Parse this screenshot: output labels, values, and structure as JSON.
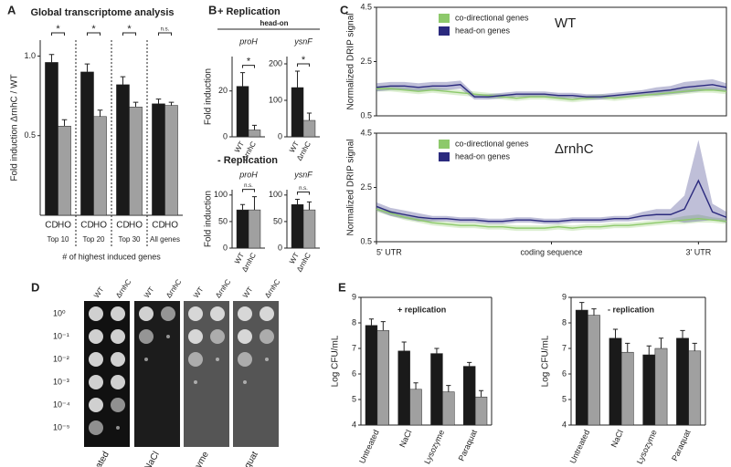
{
  "panels": [
    "A",
    "B",
    "C",
    "D",
    "E"
  ],
  "panel_b": {
    "plus": "+ Replication",
    "head_on": "head-on",
    "minus": "- Replication"
  },
  "panel_d": {
    "strains": [
      "WT",
      "ΔrnhC"
    ],
    "dilutions": [
      "10⁰",
      "10⁻¹",
      "10⁻²",
      "10⁻³",
      "10⁻⁴",
      "10⁻⁵"
    ],
    "conditions": [
      "Untreated",
      "NaCl",
      "Lysozyme",
      "Paraquat"
    ]
  },
  "chart_data": [
    {
      "type": "bar",
      "title": "Global transcriptome analysis",
      "y_label": "Fold induction ΔrnhC / WT",
      "x_label": "# of highest induced genes",
      "categories": [
        "Top 10",
        "Top 20",
        "Top 30",
        "All genes"
      ],
      "series": [
        {
          "name": "CD",
          "color": "#1a1a1a",
          "values": [
            0.96,
            0.9,
            0.82,
            0.7
          ],
          "errors": [
            0.05,
            0.05,
            0.05,
            0.03
          ]
        },
        {
          "name": "HO",
          "color": "#a0a0a0",
          "values": [
            0.56,
            0.62,
            0.68,
            0.69
          ],
          "errors": [
            0.04,
            0.04,
            0.03,
            0.02
          ]
        }
      ],
      "significance": [
        "*",
        "*",
        "*",
        "n.s."
      ],
      "ylim": [
        0,
        1.1
      ],
      "yticks": [
        0.5,
        {
          "value": 1,
          "label": "1.0"
        }
      ]
    },
    {
      "type": "bar",
      "title": "proH",
      "y_label": "Fold induction",
      "series": [
        {
          "name": "WT",
          "color": "#1a1a1a",
          "values": [
            22
          ],
          "errors": [
            6
          ]
        },
        {
          "name": "ΔrnhC",
          "color": "#a0a0a0",
          "values": [
            3
          ],
          "errors": [
            2
          ]
        }
      ],
      "significance": "*",
      "ylim": [
        0,
        35
      ],
      "yticks": [
        0,
        20
      ]
    },
    {
      "type": "bar",
      "title": "ysnF",
      "series": [
        {
          "name": "WT",
          "color": "#1a1a1a",
          "values": [
            135
          ],
          "errors": [
            45
          ]
        },
        {
          "name": "ΔrnhC",
          "color": "#a0a0a0",
          "values": [
            45
          ],
          "errors": [
            20
          ]
        }
      ],
      "significance": "*",
      "ylim": [
        0,
        220
      ],
      "yticks": [
        0,
        100,
        200
      ]
    },
    {
      "type": "bar",
      "title": "proH",
      "y_label": "Fold induction",
      "series": [
        {
          "name": "WT",
          "color": "#1a1a1a",
          "values": [
            72
          ],
          "errors": [
            10
          ]
        },
        {
          "name": "ΔrnhC",
          "color": "#a0a0a0",
          "values": [
            72
          ],
          "errors": [
            25
          ]
        }
      ],
      "significance": "n.s.",
      "ylim": [
        0,
        110
      ],
      "yticks": [
        0,
        50,
        100
      ]
    },
    {
      "type": "bar",
      "title": "ysnF",
      "series": [
        {
          "name": "WT",
          "color": "#1a1a1a",
          "values": [
            82
          ],
          "errors": [
            10
          ]
        },
        {
          "name": "ΔrnhC",
          "color": "#a0a0a0",
          "values": [
            72
          ],
          "errors": [
            15
          ]
        }
      ],
      "significance": "n.s.",
      "ylim": [
        0,
        110
      ],
      "yticks": [
        0,
        50,
        100
      ]
    },
    {
      "type": "line",
      "title": "WT",
      "y_label": "Normalized DRIP signal",
      "x": [
        0,
        4,
        8,
        12,
        16,
        20,
        24,
        28,
        32,
        36,
        40,
        44,
        48,
        52,
        56,
        60,
        64,
        68,
        72,
        76,
        80,
        84,
        88,
        92,
        96,
        100
      ],
      "series": [
        {
          "name": "co-directional genes",
          "color": "#8dc96b",
          "values": [
            1.5,
            1.5,
            1.45,
            1.4,
            1.45,
            1.4,
            1.35,
            1.3,
            1.25,
            1.2,
            1.15,
            1.2,
            1.2,
            1.15,
            1.1,
            1.15,
            1.2,
            1.15,
            1.2,
            1.25,
            1.3,
            1.35,
            1.4,
            1.45,
            1.45,
            1.4
          ],
          "errors": [
            0.1,
            0.1,
            0.1,
            0.1,
            0.1,
            0.1,
            0.1,
            0.1,
            0.1,
            0.1,
            0.1,
            0.1,
            0.1,
            0.1,
            0.1,
            0.1,
            0.1,
            0.1,
            0.1,
            0.1,
            0.1,
            0.1,
            0.1,
            0.1,
            0.1,
            0.1
          ]
        },
        {
          "name": "head-on genes",
          "color": "#2b2a7e",
          "values": [
            1.55,
            1.6,
            1.6,
            1.55,
            1.6,
            1.6,
            1.65,
            1.2,
            1.2,
            1.25,
            1.3,
            1.3,
            1.3,
            1.25,
            1.25,
            1.2,
            1.2,
            1.25,
            1.3,
            1.35,
            1.4,
            1.45,
            1.55,
            1.6,
            1.65,
            1.55
          ],
          "errors": [
            0.15,
            0.15,
            0.15,
            0.15,
            0.15,
            0.15,
            0.15,
            0.1,
            0.1,
            0.1,
            0.1,
            0.1,
            0.1,
            0.1,
            0.1,
            0.1,
            0.1,
            0.1,
            0.1,
            0.1,
            0.15,
            0.15,
            0.2,
            0.2,
            0.2,
            0.15
          ]
        }
      ],
      "xlim": [
        0,
        100
      ],
      "ylim": [
        0.5,
        4.5
      ],
      "yticks": [
        0.5,
        2.5,
        4.5
      ]
    },
    {
      "type": "line",
      "title": "ΔrnhC",
      "y_label": "Normalized DRIP signal",
      "x": [
        0,
        4,
        8,
        12,
        16,
        20,
        24,
        28,
        32,
        36,
        40,
        44,
        48,
        52,
        56,
        60,
        64,
        68,
        72,
        76,
        80,
        84,
        88,
        92,
        96,
        100
      ],
      "series": [
        {
          "name": "co-directional genes",
          "color": "#8dc96b",
          "values": [
            1.7,
            1.55,
            1.4,
            1.3,
            1.2,
            1.15,
            1.1,
            1.1,
            1.05,
            1.05,
            1.0,
            1.0,
            1.0,
            1.05,
            1.0,
            1.05,
            1.05,
            1.1,
            1.1,
            1.15,
            1.2,
            1.25,
            1.3,
            1.35,
            1.3,
            1.25
          ],
          "errors": [
            0.1,
            0.1,
            0.1,
            0.1,
            0.1,
            0.1,
            0.1,
            0.1,
            0.1,
            0.1,
            0.1,
            0.1,
            0.1,
            0.1,
            0.1,
            0.1,
            0.1,
            0.1,
            0.1,
            0.1,
            0.1,
            0.1,
            0.15,
            0.15,
            0.1,
            0.1
          ]
        },
        {
          "name": "head-on genes",
          "color": "#2b2a7e",
          "values": [
            1.8,
            1.6,
            1.5,
            1.4,
            1.35,
            1.35,
            1.3,
            1.3,
            1.25,
            1.25,
            1.3,
            1.3,
            1.25,
            1.25,
            1.3,
            1.3,
            1.3,
            1.35,
            1.35,
            1.45,
            1.5,
            1.5,
            1.7,
            2.75,
            1.6,
            1.4
          ],
          "errors": [
            0.15,
            0.15,
            0.15,
            0.15,
            0.1,
            0.1,
            0.1,
            0.1,
            0.1,
            0.1,
            0.1,
            0.1,
            0.1,
            0.1,
            0.1,
            0.1,
            0.1,
            0.1,
            0.1,
            0.15,
            0.2,
            0.2,
            0.5,
            1.5,
            0.3,
            0.2
          ]
        }
      ],
      "xlim": [
        0,
        100
      ],
      "ylim": [
        0.5,
        4.5
      ],
      "yticks": [
        0.5,
        2.5,
        4.5
      ],
      "xticks": [
        {
          "value": 0,
          "label": "5' UTR"
        },
        {
          "value": 50,
          "label": "coding sequence"
        },
        {
          "value": 92,
          "label": "3' UTR"
        }
      ]
    },
    {
      "type": "bar",
      "title": "+ replication",
      "y_label": "Log CFU/mL",
      "categories": [
        "Untreated",
        "NaCl",
        "Lysozyme",
        "Paraquat"
      ],
      "series": [
        {
          "color": "#1a1a1a",
          "values": [
            7.9,
            6.9,
            6.8,
            6.3
          ],
          "errors": [
            0.25,
            0.35,
            0.2,
            0.15
          ]
        },
        {
          "color": "#a0a0a0",
          "values": [
            7.7,
            5.4,
            5.3,
            5.1
          ],
          "errors": [
            0.35,
            0.25,
            0.25,
            0.25
          ]
        }
      ],
      "ylim": [
        4,
        9
      ],
      "yticks": [
        4,
        5,
        6,
        7,
        8,
        9
      ]
    },
    {
      "type": "bar",
      "title": "- replication",
      "y_label": "Log CFU/mL",
      "categories": [
        "Untreated",
        "NaCl",
        "Lysozyme",
        "Paraquat"
      ],
      "series": [
        {
          "color": "#1a1a1a",
          "values": [
            8.5,
            7.4,
            6.75,
            7.4
          ],
          "errors": [
            0.3,
            0.35,
            0.35,
            0.3
          ]
        },
        {
          "color": "#a0a0a0",
          "values": [
            8.3,
            6.85,
            7.0,
            6.9
          ],
          "errors": [
            0.25,
            0.35,
            0.4,
            0.3
          ]
        }
      ],
      "ylim": [
        4,
        9
      ],
      "yticks": [
        4,
        5,
        6,
        7,
        8,
        9
      ]
    }
  ]
}
